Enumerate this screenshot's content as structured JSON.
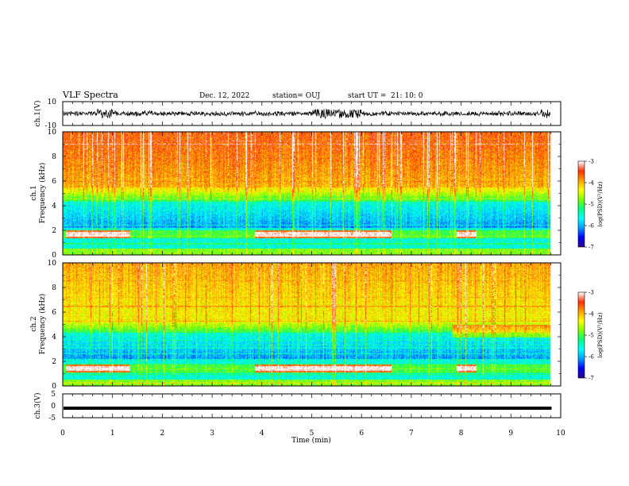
{
  "header": {
    "title": "VLF Spectra",
    "date": "Dec. 12, 2022",
    "station": "station= OUJ",
    "start_label": "start  UT  =",
    "start_time": "21: 10: 0"
  },
  "chart_data": [
    {
      "type": "line",
      "panel": "ch1-waveform",
      "ylabel": "ch.1(V)",
      "ylim": [
        -10,
        10
      ],
      "yticks": [
        "10",
        "-10"
      ],
      "xlim": [
        0,
        10
      ],
      "description_values": "noisy waveform centered near 0 V",
      "color": "#000000"
    },
    {
      "type": "heatmap",
      "panel": "ch1-spectrogram",
      "ylabel_top": "ch.1",
      "ylabel": "Frequency  (kHz)",
      "ylim": [
        0,
        10
      ],
      "yticks": [
        "0",
        "2",
        "4",
        "6",
        "8",
        "10"
      ],
      "xlim": [
        0,
        10
      ],
      "colorbar": {
        "label": "log(PSD)(V²/Hz)",
        "range": [
          -7,
          -3
        ],
        "ticks": [
          "-3",
          "-4",
          "-5",
          "-6",
          "-7"
        ]
      },
      "data_extent_min": 9.8,
      "hiss_band_khz": [
        1.3,
        2.0
      ],
      "strong_hiss_intervals_min": [
        [
          0.05,
          1.35
        ],
        [
          3.85,
          6.6
        ],
        [
          7.9,
          8.3
        ]
      ]
    },
    {
      "type": "heatmap",
      "panel": "ch2-spectrogram",
      "ylabel_top": "ch.2",
      "ylabel": "Frequency  (kHz)",
      "ylim": [
        0,
        10
      ],
      "yticks": [
        "0",
        "2",
        "4",
        "6",
        "8",
        "10"
      ],
      "xlim": [
        0,
        10
      ],
      "colorbar": {
        "label": "log(PSD)(V²/Hz)",
        "range": [
          -7,
          -3
        ],
        "ticks": [
          "-3",
          "-4",
          "-5",
          "-6",
          "-7"
        ]
      },
      "data_extent_min": 9.8,
      "hiss_band_khz": [
        1.1,
        1.7
      ],
      "strong_hiss_intervals_min": [
        [
          0.05,
          1.35
        ],
        [
          3.85,
          6.6
        ],
        [
          7.9,
          8.3
        ]
      ]
    },
    {
      "type": "line",
      "panel": "ch3-waveform",
      "ylabel": "ch.3(V)",
      "ylim": [
        -5,
        5
      ],
      "yticks": [
        "5",
        "0",
        "-5"
      ],
      "xlim": [
        0,
        10
      ],
      "constant_value": -1.0,
      "color": "#000000"
    }
  ],
  "xaxis": {
    "label": "Time  (min)",
    "ticks": [
      "0",
      "1",
      "2",
      "3",
      "4",
      "5",
      "6",
      "7",
      "8",
      "9",
      "10"
    ]
  },
  "colormap": [
    "#000000",
    "#2a0a8f",
    "#0000ff",
    "#00a0ff",
    "#00ffff",
    "#00ff80",
    "#80ff00",
    "#ffff00",
    "#ffa000",
    "#ff3000",
    "#ffffff"
  ]
}
